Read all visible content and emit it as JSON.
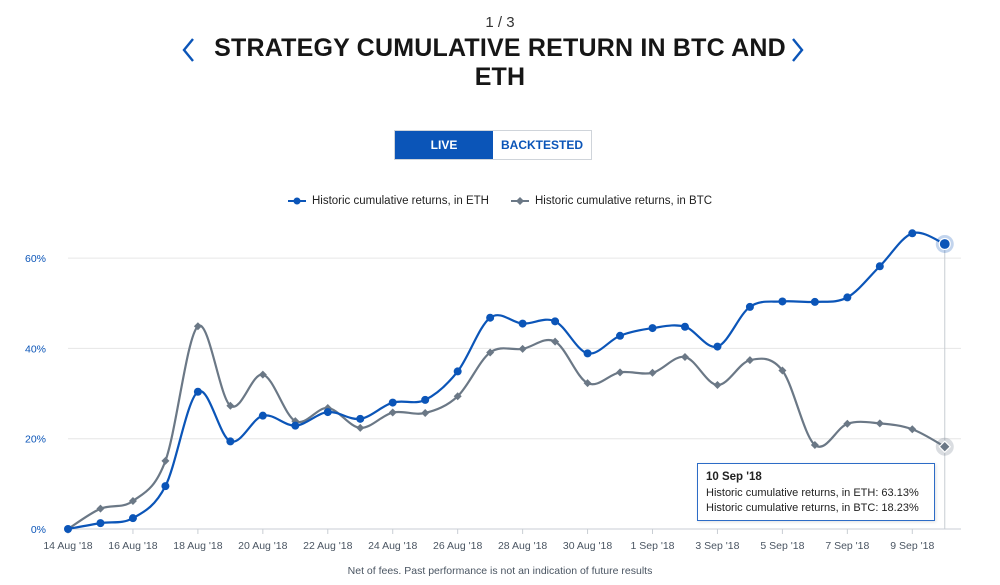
{
  "header": {
    "pager": "1 / 3",
    "title": "STRATEGY CUMULATIVE RETURN IN BTC AND ETH"
  },
  "toggle": {
    "live_label": "LIVE",
    "backtested_label": "BACKTESTED",
    "active": "live"
  },
  "colors": {
    "eth": "#0b55b8",
    "btc": "#6b7886",
    "grid": "#e6e6e6",
    "axis_text": "#4a5562"
  },
  "tooltip": {
    "date": "10 Sep '18",
    "eth_line": "Historic cumulative returns, in ETH: 63.13%",
    "btc_line": "Historic cumulative returns, in BTC: 18.23%"
  },
  "footnote": "Net of fees. Past performance is not an indication of future results",
  "chart_data": {
    "type": "line",
    "title": "STRATEGY CUMULATIVE RETURN IN BTC AND ETH",
    "x_ticks": [
      "14 Aug '18",
      "16 Aug '18",
      "18 Aug '18",
      "20 Aug '18",
      "22 Aug '18",
      "24 Aug '18",
      "26 Aug '18",
      "28 Aug '18",
      "30 Aug '18",
      "1 Sep '18",
      "3 Sep '18",
      "5 Sep '18",
      "7 Sep '18",
      "9 Sep '18"
    ],
    "y_ticks": [
      "0%",
      "20%",
      "40%",
      "60%"
    ],
    "ylim": [
      0,
      68
    ],
    "x_range": [
      0,
      27.5
    ],
    "legend_position": "top-center",
    "grid": true,
    "series": [
      {
        "name": "Historic cumulative returns, in ETH",
        "key": "eth",
        "marker": "circle",
        "points": [
          [
            0,
            0
          ],
          [
            1,
            1.3
          ],
          [
            2,
            2.4
          ],
          [
            3,
            9.5
          ],
          [
            4,
            30.4
          ],
          [
            5,
            19.4
          ],
          [
            6,
            25.1
          ],
          [
            7,
            22.9
          ],
          [
            8,
            25.9
          ],
          [
            9,
            24.4
          ],
          [
            10,
            28
          ],
          [
            11,
            28.6
          ],
          [
            12,
            34.9
          ],
          [
            13,
            46.8
          ],
          [
            14,
            45.5
          ],
          [
            15,
            46
          ],
          [
            16,
            38.9
          ],
          [
            17,
            42.8
          ],
          [
            18,
            44.5
          ],
          [
            19,
            44.8
          ],
          [
            20,
            40.4
          ],
          [
            21,
            49.2
          ],
          [
            22,
            50.4
          ],
          [
            23,
            50.3
          ],
          [
            24,
            51.3
          ],
          [
            25,
            58.2
          ],
          [
            26,
            65.5
          ],
          [
            27,
            63.13
          ]
        ]
      },
      {
        "name": "Historic cumulative returns, in BTC",
        "key": "btc",
        "marker": "diamond",
        "points": [
          [
            0,
            0
          ],
          [
            1,
            4.5
          ],
          [
            2,
            6.2
          ],
          [
            3,
            15.1
          ],
          [
            4,
            44.9
          ],
          [
            5,
            27.3
          ],
          [
            6,
            34.2
          ],
          [
            7,
            23.9
          ],
          [
            8,
            26.8
          ],
          [
            9,
            22.4
          ],
          [
            10,
            25.8
          ],
          [
            11,
            25.7
          ],
          [
            12,
            29.4
          ],
          [
            13,
            39.1
          ],
          [
            14,
            39.9
          ],
          [
            15,
            41.5
          ],
          [
            16,
            32.3
          ],
          [
            17,
            34.7
          ],
          [
            18,
            34.6
          ],
          [
            19,
            38.1
          ],
          [
            20,
            31.9
          ],
          [
            21,
            37.4
          ],
          [
            22,
            35.1
          ],
          [
            23,
            18.6
          ],
          [
            24,
            23.3
          ],
          [
            25,
            23.4
          ],
          [
            26,
            22.1
          ],
          [
            27,
            18.23
          ]
        ]
      }
    ],
    "highlighted_point_index": 27
  }
}
